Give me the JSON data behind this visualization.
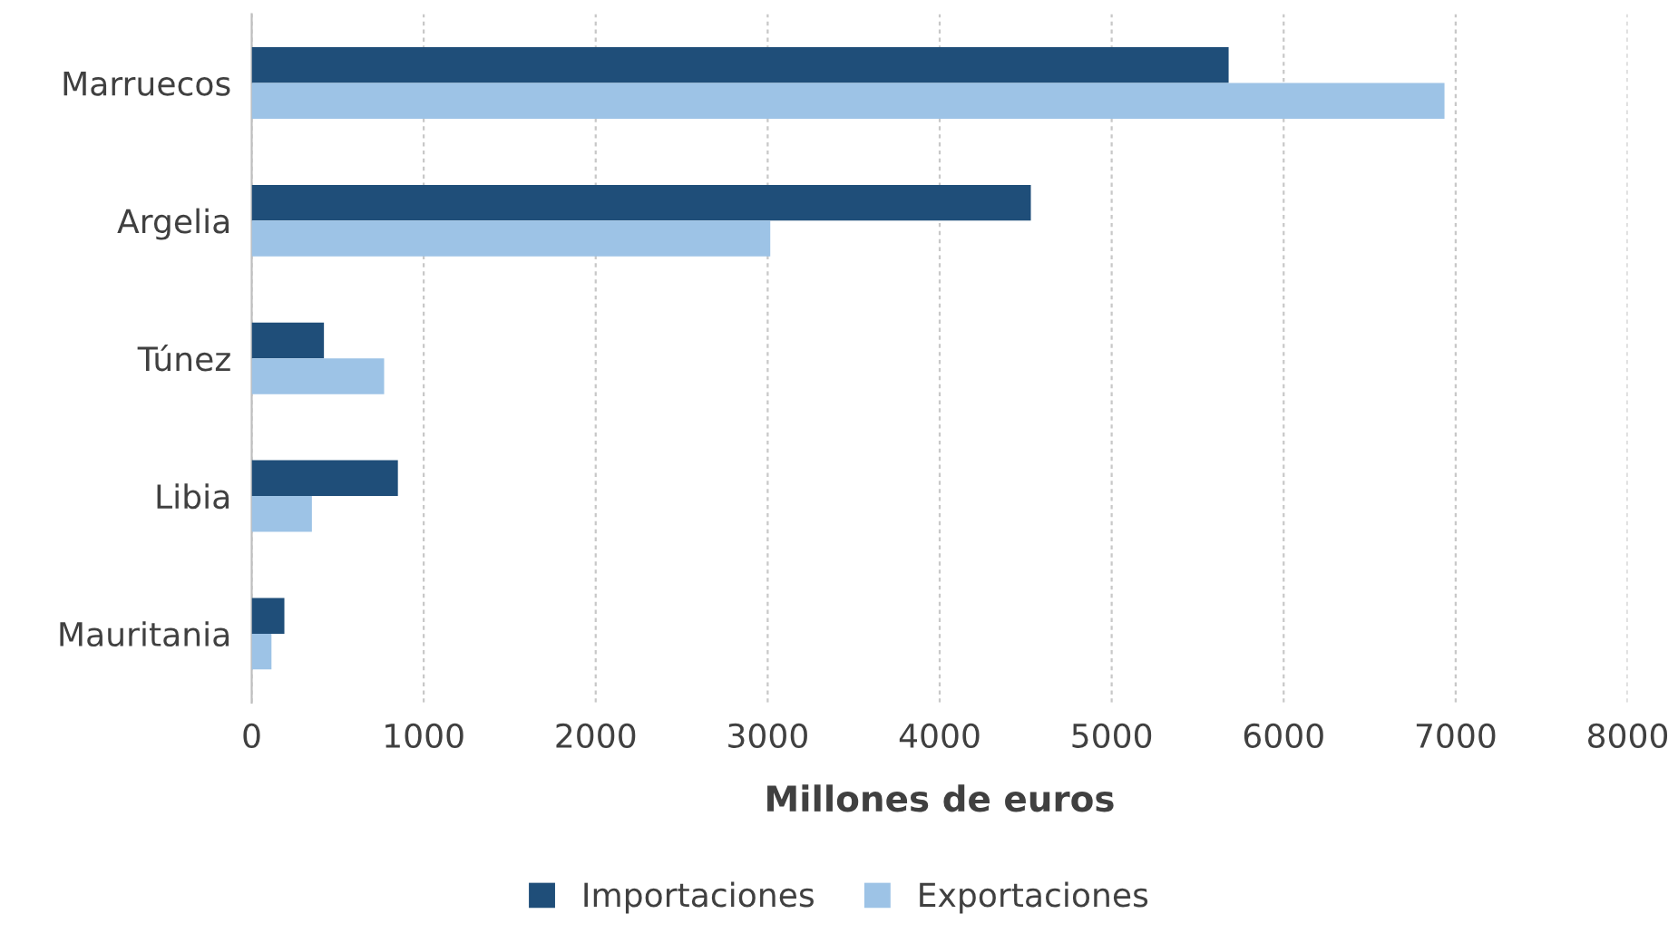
{
  "chart_data": {
    "type": "bar",
    "orientation": "horizontal",
    "xlabel": "Millones de euros",
    "categories": [
      "Marruecos",
      "Argelia",
      "Túnez",
      "Libia",
      "Mauritania"
    ],
    "series": [
      {
        "name": "Importaciones",
        "color": "#1f4e79",
        "values": [
          5680,
          4530,
          420,
          850,
          190
        ]
      },
      {
        "name": "Exportaciones",
        "color": "#9dc3e6",
        "values": [
          6935,
          3015,
          770,
          350,
          115
        ]
      }
    ],
    "xlim": [
      0,
      8000
    ],
    "xticks": [
      0,
      1000,
      2000,
      3000,
      4000,
      5000,
      6000,
      7000,
      8000
    ],
    "grid": "x",
    "legend": "bottom"
  }
}
